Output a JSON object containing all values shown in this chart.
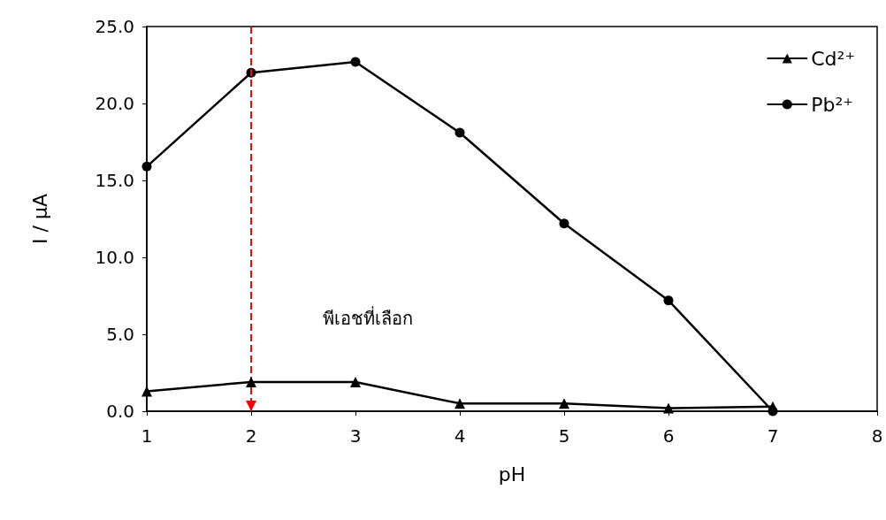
{
  "chart_data": {
    "type": "line",
    "xlabel": "pH",
    "ylabel": "I / μA",
    "x": [
      1,
      2,
      3,
      4,
      5,
      6,
      7
    ],
    "series": [
      {
        "name": "Cd²⁺",
        "color": "#000000",
        "marker": "triangle",
        "values": [
          1.3,
          1.9,
          1.9,
          0.5,
          0.5,
          0.2,
          0.3
        ]
      },
      {
        "name": "Pb²⁺",
        "color": "#000000",
        "marker": "circle",
        "values": [
          15.9,
          22.0,
          22.7,
          18.1,
          12.2,
          7.2,
          0.0
        ]
      }
    ],
    "xlim": [
      1,
      8
    ],
    "xticks": [
      1,
      2,
      3,
      4,
      5,
      6,
      7,
      8
    ],
    "ylim": [
      0,
      25
    ],
    "yticks": [
      {
        "value": 0,
        "label": "0.0"
      },
      {
        "value": 5,
        "label": "5.0"
      },
      {
        "value": 10,
        "label": "10.0"
      },
      {
        "value": 15,
        "label": "15.0"
      },
      {
        "value": 20,
        "label": "20.0"
      },
      {
        "value": 25,
        "label": "25.0"
      }
    ],
    "ref_lines": [
      {
        "axis": "x",
        "value": 2,
        "color": "#ff0000",
        "line_style": "dashed"
      }
    ],
    "annotations": [
      "พีเอชที่เลือก"
    ],
    "legend": "top right",
    "grid": false,
    "line_style": "solid"
  }
}
